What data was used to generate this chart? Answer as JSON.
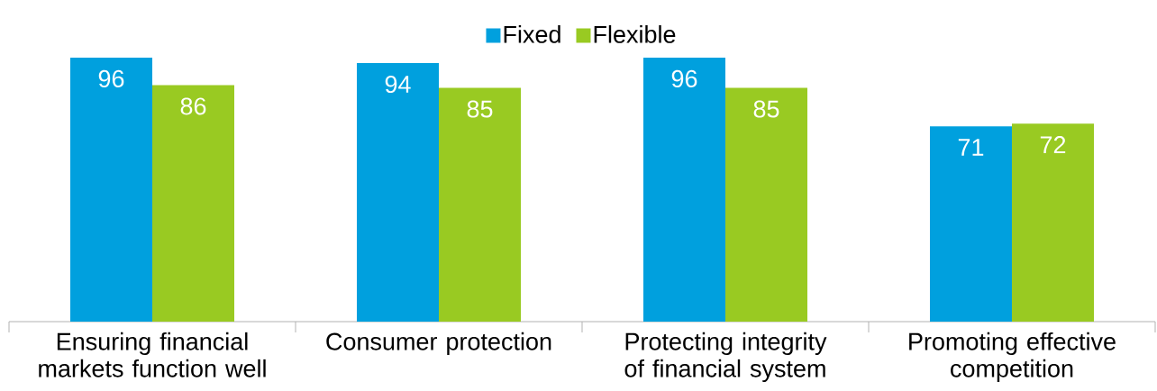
{
  "chart_data": {
    "type": "bar",
    "categories": [
      "Ensuring financial markets function well",
      "Consumer protection",
      "Protecting integrity of financial system",
      "Promoting effective competition"
    ],
    "series": [
      {
        "name": "Fixed",
        "color": "#00a0de",
        "values": [
          96,
          94,
          96,
          71
        ]
      },
      {
        "name": "Flexible",
        "color": "#99ca22",
        "values": [
          86,
          85,
          85,
          72
        ]
      }
    ],
    "data_labels": true,
    "legend": "top"
  }
}
